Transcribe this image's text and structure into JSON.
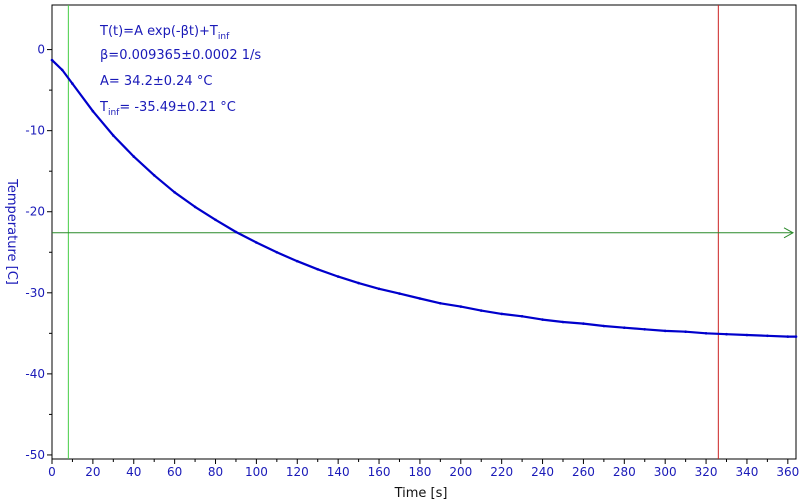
{
  "chart_data": {
    "type": "line",
    "xlabel": "Time [s]",
    "ylabel": "Temperature [C]",
    "xlim": [
      0,
      364
    ],
    "ylim": [
      -50.5,
      5.5
    ],
    "xticks": [
      0,
      20,
      40,
      60,
      80,
      100,
      120,
      140,
      160,
      180,
      200,
      220,
      240,
      260,
      280,
      300,
      320,
      340,
      360
    ],
    "yticks": [
      0,
      -10,
      -20,
      -30,
      -40,
      -50
    ],
    "grid": false,
    "series": [
      {
        "color": "#0000cc",
        "x": [
          0,
          5,
          10,
          20,
          30,
          40,
          50,
          60,
          70,
          80,
          90,
          100,
          110,
          120,
          130,
          140,
          150,
          160,
          170,
          180,
          190,
          200,
          210,
          220,
          230,
          240,
          250,
          260,
          270,
          280,
          290,
          300,
          310,
          320,
          330,
          340,
          350,
          360,
          364
        ],
        "y": [
          -1.3,
          -2.5,
          -4.2,
          -7.6,
          -10.6,
          -13.2,
          -15.5,
          -17.6,
          -19.4,
          -21.0,
          -22.5,
          -23.8,
          -25.0,
          -26.1,
          -27.1,
          -28.0,
          -28.8,
          -29.5,
          -30.1,
          -30.7,
          -31.3,
          -31.7,
          -32.2,
          -32.6,
          -32.9,
          -33.3,
          -33.6,
          -33.8,
          -34.1,
          -34.3,
          -34.5,
          -34.7,
          -34.8,
          -35.0,
          -35.1,
          -35.2,
          -35.3,
          -35.4,
          -35.4
        ]
      }
    ],
    "cursors": {
      "vertical_green_x": 8,
      "vertical_red_x": 326,
      "horizontal_green_y": -22.6
    }
  },
  "fit": {
    "line1_main": "T(t)=A exp(-βt)+T",
    "line1_sub": "inf",
    "line2": "β=0.009365±0.0002 1/s",
    "line3": "A= 34.2±0.24 °C",
    "line4_pre": "T",
    "line4_sub": "inf",
    "line4_post": "= -35.49±0.21 °C"
  },
  "colors": {
    "series": "#0000cc",
    "axis_text": "#1a1ab8",
    "axis_title_x": "#111111",
    "cursor_green_vertical": "#44cc44",
    "cursor_green_horizontal": "#2a8a2a",
    "cursor_red": "#cc2222"
  }
}
